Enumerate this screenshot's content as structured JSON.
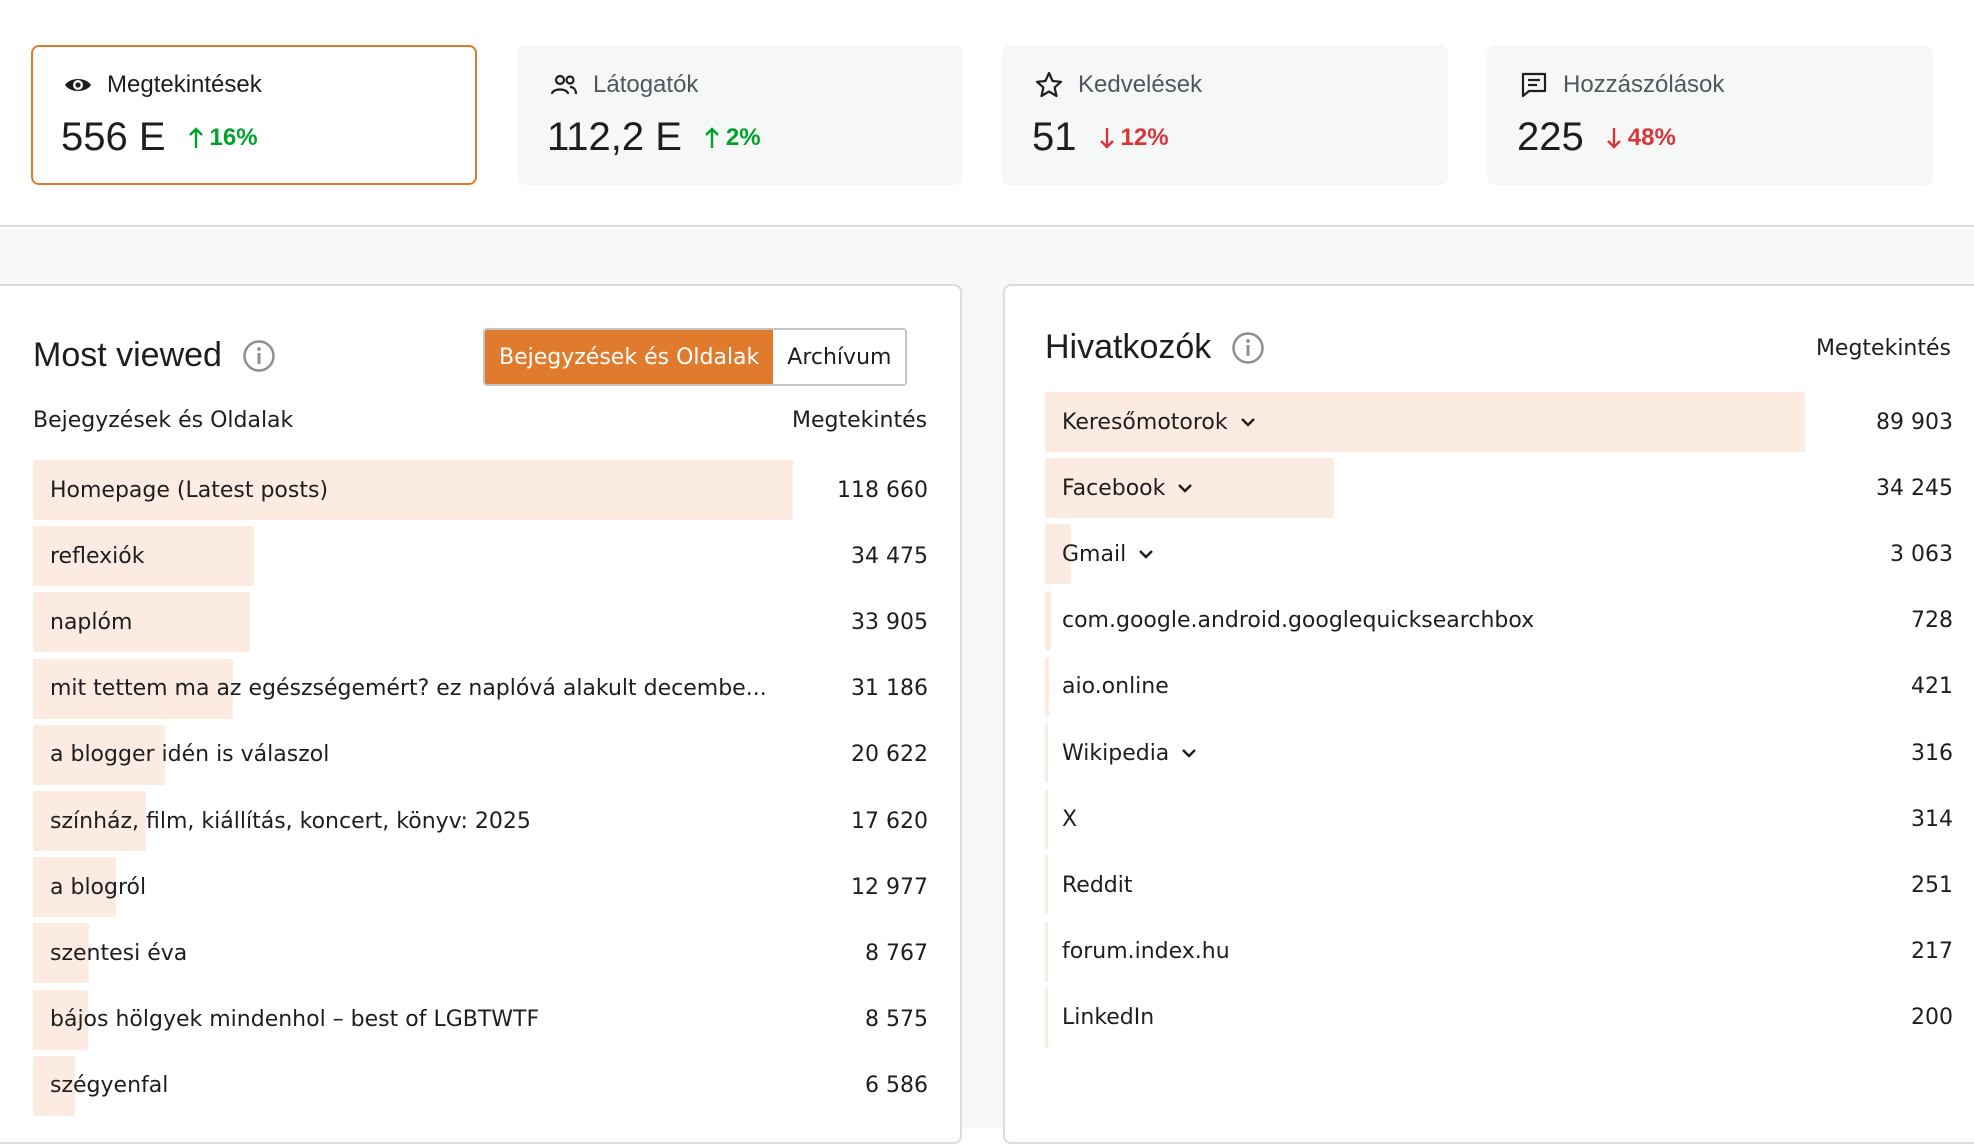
{
  "stats": [
    {
      "label": "Megtekintések",
      "value": "556 E",
      "delta": "16%",
      "direction": "up",
      "icon": "eye-icon",
      "active": true
    },
    {
      "label": "Látogatók",
      "value": "112,2 E",
      "delta": "2%",
      "direction": "up",
      "icon": "people-icon",
      "active": false
    },
    {
      "label": "Kedvelések",
      "value": "51",
      "delta": "12%",
      "direction": "down",
      "icon": "star-icon",
      "active": false
    },
    {
      "label": "Hozzászólások",
      "value": "225",
      "delta": "48%",
      "direction": "down",
      "icon": "comment-icon",
      "active": false
    }
  ],
  "colors": {
    "accent": "#e07b2e",
    "up": "#00a32a",
    "down": "#d63638",
    "bar": "#fbebe1"
  },
  "most_viewed": {
    "title": "Most viewed",
    "tabs": [
      {
        "label": "Bejegyzések és Oldalak",
        "active": true
      },
      {
        "label": "Archívum",
        "active": false
      }
    ],
    "column_left": "Bejegyzések és Oldalak",
    "column_right": "Megtekintés",
    "rows": [
      {
        "label": "Homepage (Latest posts)",
        "value": "118 660",
        "count": 118660
      },
      {
        "label": "reflexiók",
        "value": "34 475",
        "count": 34475
      },
      {
        "label": "naplóm",
        "value": "33 905",
        "count": 33905
      },
      {
        "label": "mit tettem ma az egészségemért? ez naplóvá alakult decembe...",
        "value": "31 186",
        "count": 31186
      },
      {
        "label": "a blogger idén is válaszol",
        "value": "20 622",
        "count": 20622
      },
      {
        "label": "színház, film, kiállítás, koncert, könyv: 2025",
        "value": "17 620",
        "count": 17620
      },
      {
        "label": "a blogról",
        "value": "12 977",
        "count": 12977
      },
      {
        "label": "szentesi éva",
        "value": "8 767",
        "count": 8767
      },
      {
        "label": "bájos hölgyek mindenhol – best of LGBTWTF",
        "value": "8 575",
        "count": 8575
      },
      {
        "label": "szégyenfal",
        "value": "6 586",
        "count": 6586
      }
    ]
  },
  "referrers": {
    "title": "Hivatkozók",
    "column_right": "Megtekintés",
    "rows": [
      {
        "label": "Keresőmotorok",
        "value": "89 903",
        "count": 89903,
        "expandable": true
      },
      {
        "label": "Facebook",
        "value": "34 245",
        "count": 34245,
        "expandable": true
      },
      {
        "label": "Gmail",
        "value": "3 063",
        "count": 3063,
        "expandable": true
      },
      {
        "label": "com.google.android.googlequicksearchbox",
        "value": "728",
        "count": 728,
        "expandable": false
      },
      {
        "label": "aio.online",
        "value": "421",
        "count": 421,
        "expandable": false
      },
      {
        "label": "Wikipedia",
        "value": "316",
        "count": 316,
        "expandable": true
      },
      {
        "label": "X",
        "value": "314",
        "count": 314,
        "expandable": false
      },
      {
        "label": "Reddit",
        "value": "251",
        "count": 251,
        "expandable": false
      },
      {
        "label": "forum.index.hu",
        "value": "217",
        "count": 217,
        "expandable": false
      },
      {
        "label": "LinkedIn",
        "value": "200",
        "count": 200,
        "expandable": false
      }
    ]
  }
}
